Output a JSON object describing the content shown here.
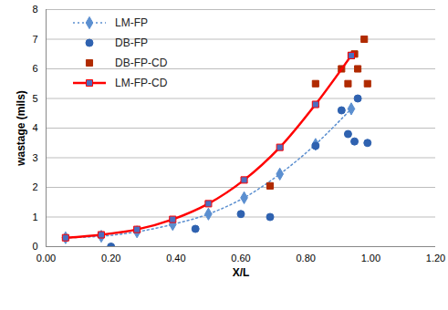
{
  "chart_data": {
    "type": "scatter",
    "x_label": "X/L",
    "y_label": "wastage (mils)",
    "xlim": [
      0,
      1.2
    ],
    "ylim": [
      0,
      8
    ],
    "xticks": [
      {
        "value": 0,
        "label": "0.00"
      },
      {
        "value": 0.2,
        "label": "0.20"
      },
      {
        "value": 0.4,
        "label": "0.40"
      },
      {
        "value": 0.6,
        "label": "0.60"
      },
      {
        "value": 0.8,
        "label": "0.80"
      },
      {
        "value": 1.0,
        "label": "1.00"
      },
      {
        "value": 1.2,
        "label": "1.20"
      }
    ],
    "yticks": [
      0,
      1,
      2,
      3,
      4,
      5,
      6,
      7,
      8
    ],
    "grid": true,
    "legend": "top-left",
    "series": [
      {
        "name": "LM-FP",
        "type": "line",
        "color": "#5b8fd0",
        "marker": "diamond",
        "line_style": "dotted",
        "x": [
          0.06,
          0.17,
          0.28,
          0.39,
          0.5,
          0.61,
          0.72,
          0.83,
          0.94
        ],
        "values": [
          0.3,
          0.35,
          0.5,
          0.75,
          1.1,
          1.65,
          2.45,
          3.45,
          4.65
        ]
      },
      {
        "name": "DB-FP",
        "type": "scatter",
        "color": "#2f62b0",
        "marker": "circle",
        "x": [
          0.2,
          0.46,
          0.6,
          0.69,
          0.83,
          0.91,
          0.93,
          0.95,
          0.96,
          0.99
        ],
        "values": [
          0,
          0.6,
          1.1,
          1.0,
          3.4,
          4.6,
          3.8,
          3.55,
          5.0,
          3.5
        ]
      },
      {
        "name": "DB-FP-CD",
        "type": "scatter",
        "color": "#b02a00",
        "marker": "square",
        "x": [
          0.69,
          0.83,
          0.91,
          0.93,
          0.94,
          0.95,
          0.96,
          0.98,
          0.99
        ],
        "values": [
          2.05,
          5.5,
          6.0,
          5.5,
          6.45,
          6.5,
          6.0,
          7.0,
          5.5
        ]
      },
      {
        "name": "LM-FP-CD",
        "type": "line",
        "color": "#ff0000",
        "marker": "square",
        "line_style": "solid",
        "x": [
          0.06,
          0.17,
          0.28,
          0.39,
          0.5,
          0.61,
          0.72,
          0.83,
          0.94
        ],
        "values": [
          0.3,
          0.4,
          0.58,
          0.92,
          1.45,
          2.25,
          3.35,
          4.8,
          6.45
        ]
      }
    ]
  }
}
